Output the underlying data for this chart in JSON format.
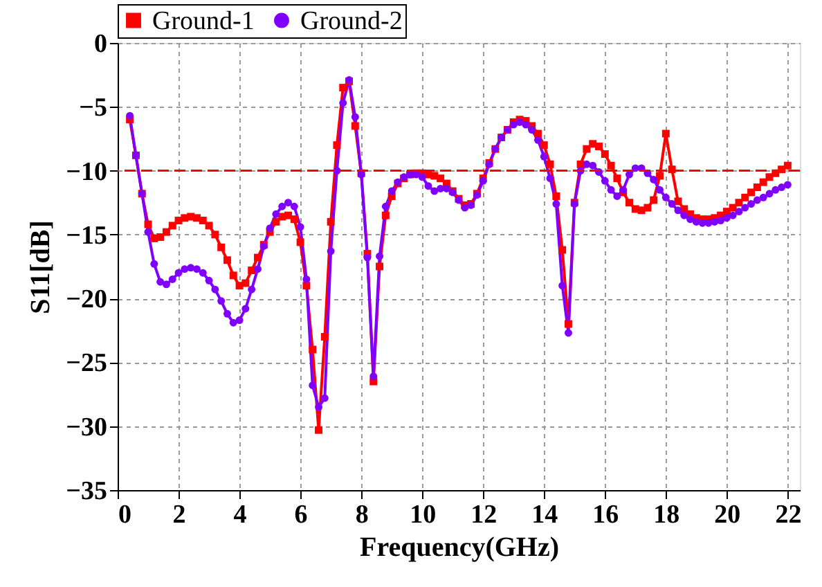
{
  "chart_data": {
    "type": "line",
    "xlabel": "Frequency(GHz)",
    "ylabel": "S11[dB]",
    "x": [
      0.4,
      0.6,
      0.8,
      1.0,
      1.2,
      1.4,
      1.6,
      1.8,
      2.0,
      2.2,
      2.4,
      2.6,
      2.8,
      3.0,
      3.2,
      3.4,
      3.6,
      3.8,
      4.0,
      4.2,
      4.4,
      4.6,
      4.8,
      5.0,
      5.2,
      5.4,
      5.6,
      5.8,
      6.0,
      6.2,
      6.4,
      6.6,
      6.8,
      7.0,
      7.2,
      7.4,
      7.6,
      7.8,
      8.0,
      8.2,
      8.4,
      8.6,
      8.8,
      9.0,
      9.2,
      9.4,
      9.6,
      9.8,
      10.0,
      10.2,
      10.4,
      10.6,
      10.8,
      11.0,
      11.2,
      11.4,
      11.6,
      11.8,
      12.0,
      12.2,
      12.4,
      12.6,
      12.8,
      13.0,
      13.2,
      13.4,
      13.6,
      13.8,
      14.0,
      14.2,
      14.4,
      14.6,
      14.8,
      15.0,
      15.2,
      15.4,
      15.6,
      15.8,
      16.0,
      16.2,
      16.4,
      16.6,
      16.8,
      17.0,
      17.2,
      17.4,
      17.6,
      17.8,
      18.0,
      18.2,
      18.4,
      18.6,
      18.8,
      19.0,
      19.2,
      19.4,
      19.6,
      19.8,
      20.0,
      20.2,
      20.4,
      20.6,
      20.8,
      21.0,
      21.2,
      21.4,
      21.6,
      21.8,
      22.0
    ],
    "series": [
      {
        "name": "Ground-1",
        "color": "#ff0000",
        "marker": "square",
        "values": [
          -6,
          -8.8,
          -11.8,
          -14.2,
          -15.3,
          -15.2,
          -14.8,
          -14.3,
          -13.9,
          -13.7,
          -13.6,
          -13.7,
          -13.9,
          -14.3,
          -15,
          -16,
          -17,
          -18.2,
          -19,
          -18.8,
          -17.8,
          -16.8,
          -15.8,
          -14.8,
          -14,
          -13.6,
          -13.5,
          -13.8,
          -15.6,
          -19,
          -24,
          -30.3,
          -23,
          -14,
          -8,
          -3.5,
          -3,
          -6.5,
          -10.2,
          -16.5,
          -26.5,
          -17.5,
          -13.5,
          -12,
          -11,
          -10.6,
          -10.3,
          -10.2,
          -10.2,
          -10.3,
          -10.4,
          -10.6,
          -11,
          -11.6,
          -12.2,
          -12.7,
          -12.6,
          -11.8,
          -10.6,
          -9.4,
          -8.3,
          -7.4,
          -6.8,
          -6.2,
          -6,
          -6.1,
          -6.5,
          -7.1,
          -8,
          -9.5,
          -12,
          -16.2,
          -22,
          -12.5,
          -9.5,
          -8.3,
          -7.9,
          -8.1,
          -8.7,
          -9.6,
          -10.6,
          -11.7,
          -12.5,
          -13,
          -13.1,
          -12.9,
          -12.3,
          -10.4,
          -7.1,
          -9.9,
          -12.4,
          -13,
          -13.4,
          -13.7,
          -13.8,
          -13.8,
          -13.7,
          -13.5,
          -13.2,
          -12.9,
          -12.5,
          -12.1,
          -11.7,
          -11.3,
          -10.9,
          -10.5,
          -10.2,
          -9.9,
          -9.6
        ]
      },
      {
        "name": "Ground-2",
        "color": "#8000ff",
        "marker": "circle",
        "values": [
          -5.7,
          -8.8,
          -11.8,
          -14.8,
          -17.3,
          -18.7,
          -18.9,
          -18.5,
          -18,
          -17.7,
          -17.6,
          -17.7,
          -18,
          -18.6,
          -19.3,
          -20.2,
          -21.2,
          -21.9,
          -21.7,
          -20.8,
          -19.3,
          -17.7,
          -15.9,
          -14.5,
          -13.4,
          -12.8,
          -12.5,
          -12.8,
          -14.4,
          -18.5,
          -26.8,
          -28.5,
          -27.8,
          -16.3,
          -10,
          -4.7,
          -2.9,
          -5.8,
          -10.3,
          -16.8,
          -26.1,
          -16.7,
          -12.8,
          -11.6,
          -10.9,
          -10.5,
          -10.3,
          -10.3,
          -10.5,
          -11.2,
          -11.6,
          -11.4,
          -11.4,
          -11.7,
          -12.3,
          -12.9,
          -12.7,
          -11.9,
          -10.8,
          -9.5,
          -8.3,
          -7.4,
          -6.8,
          -6.4,
          -6.2,
          -6.4,
          -6.8,
          -7.6,
          -8.9,
          -10.6,
          -12.6,
          -19,
          -22.7,
          -12.6,
          -10,
          -9.5,
          -9.6,
          -10.1,
          -10.8,
          -11.5,
          -12,
          -11.5,
          -10.3,
          -9.8,
          -9.8,
          -10.2,
          -10.7,
          -11.5,
          -12.1,
          -12.6,
          -13.1,
          -13.5,
          -13.8,
          -14,
          -14.1,
          -14.1,
          -14,
          -13.9,
          -13.7,
          -13.5,
          -13.2,
          -12.9,
          -12.6,
          -12.3,
          -12.1,
          -11.8,
          -11.5,
          -11.3,
          -11.1
        ]
      }
    ],
    "xlim": [
      0,
      22.4
    ],
    "xticks": [
      0,
      2,
      4,
      6,
      8,
      10,
      12,
      14,
      16,
      18,
      20,
      22
    ],
    "ylim": [
      -35,
      0
    ],
    "yticks": [
      -35,
      -30,
      -25,
      -20,
      -15,
      -10,
      -5,
      0
    ],
    "ref_lines": [
      {
        "axis": "y",
        "value": -10,
        "color": "#ff0000",
        "line_style": "dashed"
      }
    ],
    "grid": true,
    "legend": "top",
    "line_style": "solid"
  }
}
